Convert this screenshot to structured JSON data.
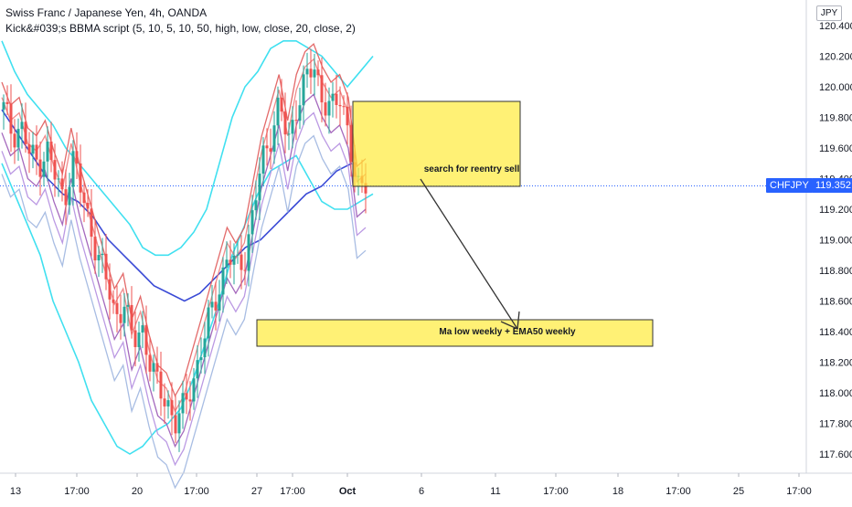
{
  "header": {
    "title": "Swiss Franc / Japanese Yen, 4h, OANDA",
    "indicator": "Kick&#039;s BBMA script (5, 10, 5, 10, 50, high, low, close, 20, close, 2)"
  },
  "price_scale": {
    "currency": "JPY",
    "symbol_tag": "CHFJPY",
    "last_price": "119.352"
  },
  "annotations": {
    "box1_text": "search for reentry sell",
    "box2_text": "Ma low weekly + EMA50 weekly"
  },
  "colors": {
    "bullish": "#26a69a",
    "bearish": "#ef5350",
    "highlight_box": "#ffeb3b",
    "bb_bands": "#40e0f0",
    "ema50": "#3b4bd6",
    "ma_high": "#e05a5a",
    "ma_low": "#9b59b6"
  },
  "chart_data": {
    "type": "line",
    "title": "Swiss Franc / Japanese Yen, 4h, OANDA",
    "y_ticks": [
      "120.400",
      "120.200",
      "120.000",
      "119.800",
      "119.600",
      "119.400",
      "119.200",
      "119.000",
      "118.800",
      "118.600",
      "118.400",
      "118.200",
      "118.000",
      "117.800",
      "117.600"
    ],
    "x_ticks": [
      "13",
      "17:00",
      "20",
      "17:00",
      "27",
      "17:00",
      "Oct",
      "6",
      "11",
      "17:00",
      "18",
      "17:00",
      "25",
      "17:00"
    ],
    "ylim": [
      117.5,
      120.6
    ],
    "last_price": 119.352,
    "price_path": {
      "x": [
        0,
        4,
        8,
        12,
        16,
        20,
        24,
        28,
        32,
        36,
        40,
        44,
        48,
        52,
        56,
        60,
        64,
        68,
        72,
        76,
        80,
        84,
        88,
        92,
        96,
        100,
        104,
        108,
        112,
        116,
        120,
        124,
        128,
        132,
        136,
        140,
        144,
        148,
        152,
        156,
        160,
        164,
        168
      ],
      "y": [
        119.85,
        119.7,
        119.75,
        119.55,
        119.5,
        119.6,
        119.4,
        119.25,
        119.55,
        119.3,
        119.1,
        118.9,
        118.7,
        118.5,
        118.6,
        118.3,
        118.45,
        118.2,
        118.0,
        117.95,
        117.8,
        117.9,
        118.1,
        118.3,
        118.5,
        118.7,
        118.9,
        118.8,
        118.9,
        119.2,
        119.5,
        119.7,
        119.9,
        119.6,
        119.9,
        120.05,
        120.1,
        119.95,
        119.85,
        119.9,
        119.75,
        119.3,
        119.35
      ]
    },
    "series": [
      {
        "name": "BB Upper",
        "values": [
          120.3,
          120.1,
          119.95,
          119.85,
          119.75,
          119.6,
          119.5,
          119.4,
          119.3,
          119.2,
          119.1,
          118.95,
          118.9,
          118.9,
          118.95,
          119.05,
          119.2,
          119.5,
          119.8,
          120.0,
          120.1,
          120.25,
          120.3,
          120.3,
          120.25,
          120.2,
          120.1,
          120.0,
          120.1,
          120.2
        ]
      },
      {
        "name": "BB Lower",
        "values": [
          119.5,
          119.3,
          119.1,
          118.9,
          118.6,
          118.4,
          118.2,
          117.95,
          117.8,
          117.65,
          117.6,
          117.65,
          117.75,
          117.8,
          117.9,
          118.1,
          118.35,
          118.6,
          118.9,
          119.1,
          119.3,
          119.45,
          119.5,
          119.55,
          119.4,
          119.25,
          119.2,
          119.2,
          119.25,
          119.3
        ]
      },
      {
        "name": "EMA 50",
        "values": [
          119.85,
          119.7,
          119.55,
          119.4,
          119.3,
          119.25,
          119.15,
          119.0,
          118.9,
          118.8,
          118.7,
          118.65,
          118.6,
          118.65,
          118.75,
          118.85,
          118.95,
          119.0,
          119.1,
          119.2,
          119.3,
          119.35,
          119.45,
          119.5
        ]
      }
    ],
    "annotation_boxes": [
      {
        "label": "search for reentry sell",
        "x_range": [
          "Oct",
          "6"
        ],
        "y_range": [
          119.35,
          119.9
        ]
      },
      {
        "label": "Ma low weekly + EMA50 weekly",
        "x_range": [
          "27",
          "18"
        ],
        "y_range": [
          118.3,
          118.48
        ]
      }
    ]
  }
}
